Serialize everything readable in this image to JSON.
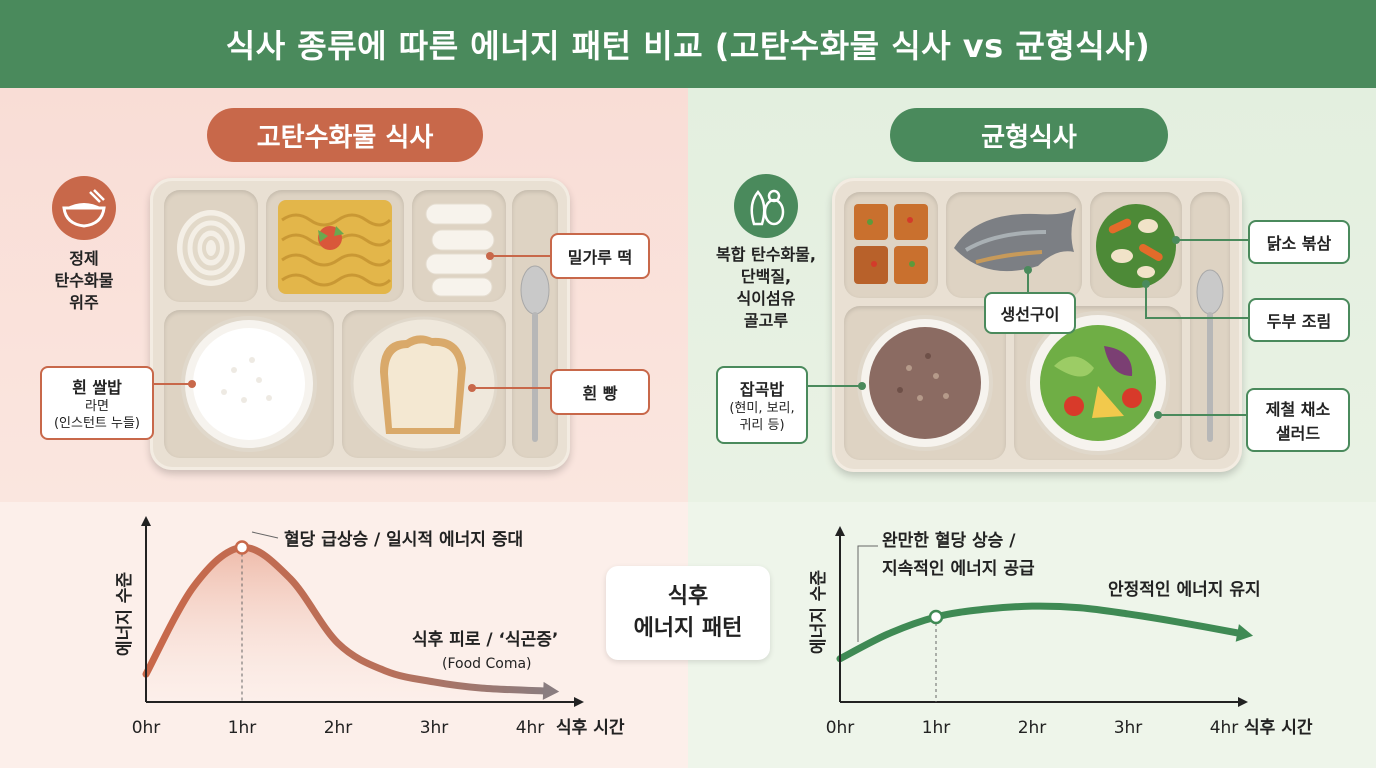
{
  "header": {
    "title": "식사 종류에 따른 에너지 패턴 비교 (고탄수화물 식사 vs 균형식사)"
  },
  "left_panel": {
    "title": "고탄수화물 식사",
    "icon": "rice-bowl-icon",
    "side_text": [
      "정제",
      "탄수화물",
      "위주"
    ],
    "labels": {
      "rice": {
        "line1": "흰 쌀밥",
        "line2": "라면",
        "line3": "(인스턴트 누들)"
      },
      "tteok": "밀가루 떡",
      "bread": "흰 빵"
    }
  },
  "right_panel": {
    "title": "균형식사",
    "icon": "vegetable-icon",
    "side_text": [
      "복합 탄수화물,",
      "단백질,",
      "식이섬유",
      "골고루"
    ],
    "labels": {
      "fish": "생선구이",
      "chicken": "닭소 볶삼",
      "tofu": "두부 조림",
      "grain": {
        "line1": "잡곡밥",
        "line2": "(현미, 보리,",
        "line3": "귀리 등)"
      },
      "salad": {
        "line1": "제철 채소",
        "line2": "샐러드"
      }
    }
  },
  "center_box": {
    "line1": "식후",
    "line2": "에너지 패턴"
  },
  "colors": {
    "header": "#4a8a5c",
    "carb": "#c8684a",
    "balanced": "#4a8a5c"
  },
  "chart_data": [
    {
      "type": "line",
      "ylabel": "에너지 수준",
      "xlabel": "식후 시간",
      "x": [
        "0hr",
        "1hr",
        "2hr",
        "3hr",
        "4hr"
      ],
      "series": [
        {
          "x": [
            0,
            0.5,
            1,
            1.5,
            2,
            2.5,
            3,
            3.5,
            4.2
          ],
          "y": [
            18,
            75,
            100,
            80,
            38,
            20,
            13,
            9,
            7
          ]
        }
      ],
      "ylim": [
        0,
        110
      ],
      "annotations": [
        {
          "text": "혈당 급상승 / 일시적 에너지 증대"
        },
        {
          "text": "식후 피로 / ‘식곤증’"
        },
        {
          "text": "(Food Coma)"
        }
      ]
    },
    {
      "type": "line",
      "ylabel": "에너지 수준",
      "xlabel": "식후 시간",
      "x": [
        "0hr",
        "1hr",
        "2hr",
        "3hr",
        "4hr"
      ],
      "series": [
        {
          "x": [
            0,
            0.5,
            1,
            1.5,
            2,
            2.5,
            3,
            3.5,
            4.2
          ],
          "y": [
            28,
            44,
            55,
            60,
            62,
            61,
            57,
            52,
            44
          ]
        }
      ],
      "ylim": [
        0,
        110
      ],
      "annotations": [
        {
          "text": "완만한 혈당 상승 /"
        },
        {
          "text": "지속적인 에너지 공급"
        },
        {
          "text": "안정적인 에너지 유지"
        }
      ]
    }
  ]
}
